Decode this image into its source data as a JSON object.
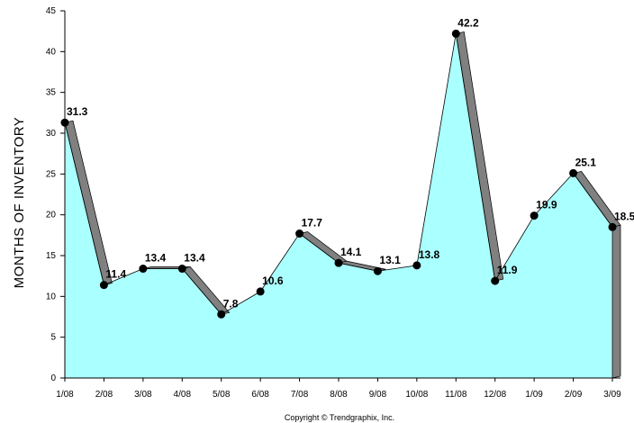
{
  "chart_data": {
    "type": "area",
    "categories": [
      "1/08",
      "2/08",
      "3/08",
      "4/08",
      "5/08",
      "6/08",
      "7/08",
      "8/08",
      "9/08",
      "10/08",
      "11/08",
      "12/08",
      "1/09",
      "2/09",
      "3/09"
    ],
    "values": [
      31.3,
      11.4,
      13.4,
      13.4,
      7.8,
      10.6,
      17.7,
      14.1,
      13.1,
      13.8,
      42.2,
      11.9,
      19.9,
      25.1,
      18.5
    ],
    "data_labels": [
      "31.3",
      "11.4",
      "13.4",
      "13.4",
      "7.8",
      "10.6",
      "17.7",
      "14.1",
      "13.1",
      "13.8",
      "42.2",
      "11.9",
      "19.9",
      "25.1",
      "18.5"
    ],
    "title": "",
    "xlabel": "",
    "ylabel": "MONTHS OF INVENTORY",
    "ylim": [
      0,
      45
    ],
    "yticks": [
      0,
      5,
      10,
      15,
      20,
      25,
      30,
      35,
      40,
      45
    ],
    "grid": false,
    "legend": "none",
    "colors": {
      "fill": "#aaffff",
      "shadow": "#808080",
      "line": "#000000",
      "marker": "#000000"
    }
  },
  "footer": {
    "copyright": "Copyright © Trendgraphix, Inc."
  }
}
